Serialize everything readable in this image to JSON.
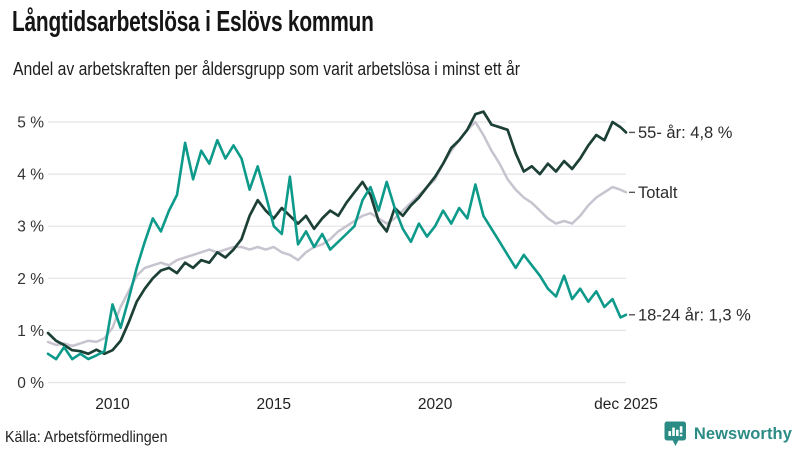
{
  "title": "Långtidsarbetslösa i Eslövs kommun",
  "subtitle": "Andel av arbetskraften per åldersgrupp som varit arbetslösa i minst ett år",
  "source": "Källa: Arbetsförmedlingen",
  "brand": {
    "name": "Newsworthy",
    "color": "#2b8c85",
    "icon": "bar-chart-speech-bubble-icon"
  },
  "chart_data": {
    "type": "line",
    "title": "Långtidsarbetslösa i Eslövs kommun",
    "subtitle": "Andel av arbetskraften per åldersgrupp som varit arbetslösa i minst ett år",
    "unit": "% av arbetskraften",
    "grid": true,
    "legend_position": "right-end-labels",
    "colors": {
      "grid": "#e4e3e8",
      "axis_text": "#333333",
      "label_text": "#2b2b2b"
    },
    "x_axis": {
      "label": "",
      "range": [
        2008,
        2025.92
      ],
      "ticks": [
        "2010",
        "2015",
        "2020",
        "dec 2025"
      ],
      "tick_years": [
        2010,
        2015,
        2020,
        2025.92
      ]
    },
    "y_axis": {
      "label": "",
      "range": [
        0,
        5.4
      ],
      "ticks": [
        "0 %",
        "1 %",
        "2 %",
        "3 %",
        "4 %",
        "5 %"
      ],
      "tick_values": [
        0,
        1,
        2,
        3,
        4,
        5
      ]
    },
    "series": [
      {
        "name": "Totalt",
        "label": "Totalt",
        "end_value_shown": null,
        "color": "#c7c4cf",
        "stroke_width": 2.5,
        "points": [
          [
            2008,
            0.78
          ],
          [
            2008.25,
            0.72
          ],
          [
            2008.5,
            0.75
          ],
          [
            2008.75,
            0.7
          ],
          [
            2009,
            0.75
          ],
          [
            2009.25,
            0.8
          ],
          [
            2009.5,
            0.78
          ],
          [
            2009.75,
            0.85
          ],
          [
            2010,
            1.05
          ],
          [
            2010.25,
            1.45
          ],
          [
            2010.5,
            1.75
          ],
          [
            2010.75,
            2.05
          ],
          [
            2011,
            2.2
          ],
          [
            2011.25,
            2.25
          ],
          [
            2011.5,
            2.3
          ],
          [
            2011.75,
            2.25
          ],
          [
            2012,
            2.35
          ],
          [
            2012.25,
            2.4
          ],
          [
            2012.5,
            2.45
          ],
          [
            2012.75,
            2.5
          ],
          [
            2013,
            2.55
          ],
          [
            2013.25,
            2.5
          ],
          [
            2013.5,
            2.55
          ],
          [
            2013.75,
            2.6
          ],
          [
            2014,
            2.6
          ],
          [
            2014.25,
            2.55
          ],
          [
            2014.5,
            2.6
          ],
          [
            2014.75,
            2.55
          ],
          [
            2015,
            2.6
          ],
          [
            2015.25,
            2.5
          ],
          [
            2015.5,
            2.45
          ],
          [
            2015.75,
            2.35
          ],
          [
            2016,
            2.5
          ],
          [
            2016.25,
            2.6
          ],
          [
            2016.5,
            2.65
          ],
          [
            2016.75,
            2.75
          ],
          [
            2017,
            2.9
          ],
          [
            2017.25,
            3.0
          ],
          [
            2017.5,
            3.1
          ],
          [
            2017.75,
            3.2
          ],
          [
            2018,
            3.25
          ],
          [
            2018.25,
            3.15
          ],
          [
            2018.5,
            3.05
          ],
          [
            2018.75,
            3.15
          ],
          [
            2019,
            3.3
          ],
          [
            2019.25,
            3.45
          ],
          [
            2019.5,
            3.6
          ],
          [
            2019.75,
            3.75
          ],
          [
            2020,
            3.9
          ],
          [
            2020.25,
            4.2
          ],
          [
            2020.5,
            4.45
          ],
          [
            2020.75,
            4.65
          ],
          [
            2021,
            4.85
          ],
          [
            2021.25,
            5.0
          ],
          [
            2021.5,
            4.75
          ],
          [
            2021.75,
            4.45
          ],
          [
            2022,
            4.2
          ],
          [
            2022.25,
            3.9
          ],
          [
            2022.5,
            3.7
          ],
          [
            2022.75,
            3.55
          ],
          [
            2023,
            3.45
          ],
          [
            2023.25,
            3.3
          ],
          [
            2023.5,
            3.15
          ],
          [
            2023.75,
            3.05
          ],
          [
            2024,
            3.1
          ],
          [
            2024.25,
            3.05
          ],
          [
            2024.5,
            3.2
          ],
          [
            2024.75,
            3.4
          ],
          [
            2025,
            3.55
          ],
          [
            2025.25,
            3.65
          ],
          [
            2025.5,
            3.75
          ],
          [
            2025.75,
            3.7
          ],
          [
            2025.92,
            3.65
          ]
        ]
      },
      {
        "name": "55- år",
        "label": "55- år: 4,8 %",
        "end_value_shown": "4,8 %",
        "color": "#1c4036",
        "stroke_width": 2.7,
        "points": [
          [
            2008,
            0.95
          ],
          [
            2008.25,
            0.8
          ],
          [
            2008.5,
            0.72
          ],
          [
            2008.75,
            0.62
          ],
          [
            2009,
            0.6
          ],
          [
            2009.25,
            0.55
          ],
          [
            2009.5,
            0.63
          ],
          [
            2009.75,
            0.55
          ],
          [
            2010,
            0.62
          ],
          [
            2010.25,
            0.8
          ],
          [
            2010.5,
            1.15
          ],
          [
            2010.75,
            1.55
          ],
          [
            2011,
            1.8
          ],
          [
            2011.25,
            2.0
          ],
          [
            2011.5,
            2.15
          ],
          [
            2011.75,
            2.2
          ],
          [
            2012,
            2.1
          ],
          [
            2012.25,
            2.3
          ],
          [
            2012.5,
            2.2
          ],
          [
            2012.75,
            2.35
          ],
          [
            2013,
            2.3
          ],
          [
            2013.25,
            2.5
          ],
          [
            2013.5,
            2.4
          ],
          [
            2013.75,
            2.55
          ],
          [
            2014,
            2.75
          ],
          [
            2014.25,
            3.2
          ],
          [
            2014.5,
            3.5
          ],
          [
            2014.75,
            3.3
          ],
          [
            2015,
            3.15
          ],
          [
            2015.25,
            3.35
          ],
          [
            2015.5,
            3.2
          ],
          [
            2015.75,
            3.05
          ],
          [
            2016,
            3.2
          ],
          [
            2016.25,
            2.95
          ],
          [
            2016.5,
            3.15
          ],
          [
            2016.75,
            3.3
          ],
          [
            2017,
            3.2
          ],
          [
            2017.25,
            3.45
          ],
          [
            2017.5,
            3.65
          ],
          [
            2017.75,
            3.85
          ],
          [
            2018,
            3.6
          ],
          [
            2018.25,
            3.1
          ],
          [
            2018.5,
            2.9
          ],
          [
            2018.75,
            3.35
          ],
          [
            2019,
            3.2
          ],
          [
            2019.25,
            3.4
          ],
          [
            2019.5,
            3.55
          ],
          [
            2019.75,
            3.75
          ],
          [
            2020,
            3.95
          ],
          [
            2020.25,
            4.2
          ],
          [
            2020.5,
            4.5
          ],
          [
            2020.75,
            4.65
          ],
          [
            2021,
            4.85
          ],
          [
            2021.25,
            5.15
          ],
          [
            2021.5,
            5.2
          ],
          [
            2021.75,
            4.95
          ],
          [
            2022,
            4.9
          ],
          [
            2022.25,
            4.85
          ],
          [
            2022.5,
            4.4
          ],
          [
            2022.75,
            4.05
          ],
          [
            2023,
            4.15
          ],
          [
            2023.25,
            4.0
          ],
          [
            2023.5,
            4.2
          ],
          [
            2023.75,
            4.05
          ],
          [
            2024,
            4.25
          ],
          [
            2024.25,
            4.1
          ],
          [
            2024.5,
            4.3
          ],
          [
            2024.75,
            4.55
          ],
          [
            2025,
            4.75
          ],
          [
            2025.25,
            4.65
          ],
          [
            2025.5,
            5.0
          ],
          [
            2025.75,
            4.9
          ],
          [
            2025.92,
            4.8
          ]
        ]
      },
      {
        "name": "18-24 år",
        "label": "18-24 år: 1,3 %",
        "end_value_shown": "1,3 %",
        "color": "#0e9a8a",
        "stroke_width": 2.6,
        "points": [
          [
            2008,
            0.55
          ],
          [
            2008.25,
            0.45
          ],
          [
            2008.5,
            0.68
          ],
          [
            2008.75,
            0.45
          ],
          [
            2009,
            0.55
          ],
          [
            2009.25,
            0.45
          ],
          [
            2009.5,
            0.52
          ],
          [
            2009.75,
            0.6
          ],
          [
            2010,
            1.5
          ],
          [
            2010.25,
            1.05
          ],
          [
            2010.5,
            1.6
          ],
          [
            2010.75,
            2.2
          ],
          [
            2011,
            2.7
          ],
          [
            2011.25,
            3.15
          ],
          [
            2011.5,
            2.9
          ],
          [
            2011.75,
            3.3
          ],
          [
            2012,
            3.6
          ],
          [
            2012.25,
            4.6
          ],
          [
            2012.5,
            3.9
          ],
          [
            2012.75,
            4.45
          ],
          [
            2013,
            4.2
          ],
          [
            2013.25,
            4.65
          ],
          [
            2013.5,
            4.3
          ],
          [
            2013.75,
            4.55
          ],
          [
            2014,
            4.3
          ],
          [
            2014.25,
            3.7
          ],
          [
            2014.5,
            4.15
          ],
          [
            2014.75,
            3.6
          ],
          [
            2015,
            3.0
          ],
          [
            2015.25,
            2.85
          ],
          [
            2015.5,
            3.95
          ],
          [
            2015.75,
            2.65
          ],
          [
            2016,
            2.9
          ],
          [
            2016.25,
            2.6
          ],
          [
            2016.5,
            2.85
          ],
          [
            2016.75,
            2.55
          ],
          [
            2017,
            2.7
          ],
          [
            2017.25,
            2.85
          ],
          [
            2017.5,
            3.0
          ],
          [
            2017.75,
            3.5
          ],
          [
            2018,
            3.75
          ],
          [
            2018.25,
            3.3
          ],
          [
            2018.5,
            3.85
          ],
          [
            2018.75,
            3.35
          ],
          [
            2019,
            2.95
          ],
          [
            2019.25,
            2.7
          ],
          [
            2019.5,
            3.05
          ],
          [
            2019.75,
            2.8
          ],
          [
            2020,
            3.0
          ],
          [
            2020.25,
            3.3
          ],
          [
            2020.5,
            3.05
          ],
          [
            2020.75,
            3.35
          ],
          [
            2021,
            3.15
          ],
          [
            2021.25,
            3.8
          ],
          [
            2021.5,
            3.2
          ],
          [
            2021.75,
            2.95
          ],
          [
            2022,
            2.7
          ],
          [
            2022.25,
            2.45
          ],
          [
            2022.5,
            2.2
          ],
          [
            2022.75,
            2.45
          ],
          [
            2023,
            2.25
          ],
          [
            2023.25,
            2.05
          ],
          [
            2023.5,
            1.8
          ],
          [
            2023.75,
            1.65
          ],
          [
            2024,
            2.05
          ],
          [
            2024.25,
            1.6
          ],
          [
            2024.5,
            1.8
          ],
          [
            2024.75,
            1.55
          ],
          [
            2025,
            1.75
          ],
          [
            2025.25,
            1.45
          ],
          [
            2025.5,
            1.6
          ],
          [
            2025.75,
            1.25
          ],
          [
            2025.92,
            1.3
          ]
        ]
      }
    ]
  }
}
